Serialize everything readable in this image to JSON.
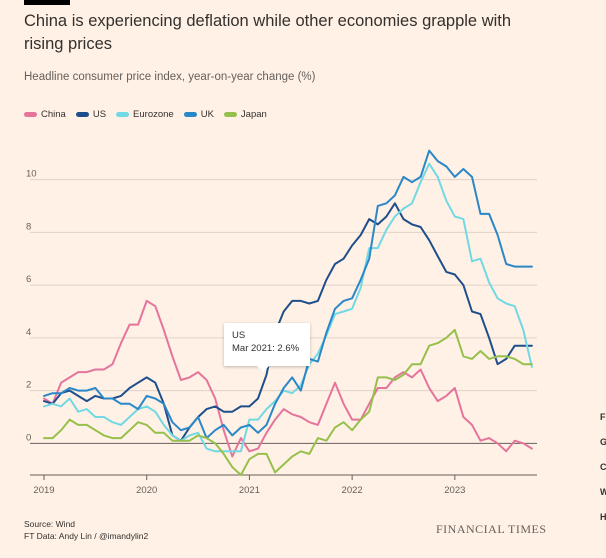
{
  "header": {
    "title": "China is experiencing deflation while other economies grapple with rising prices",
    "subtitle": "Headline consumer price index, year-on-year change (%)"
  },
  "tooltip": {
    "label": "US",
    "value": "Mar 2021: 2.6%"
  },
  "footer": {
    "source": "Source: Wind",
    "credit": "FT Data: Andy Lin / @imandylin2",
    "brand": "FINANCIAL TIMES"
  },
  "edge_letters": [
    "F",
    "G",
    "C",
    "W",
    "H"
  ],
  "chart_data": {
    "type": "line",
    "title": "China is experiencing deflation while other economies grapple with rising prices",
    "subtitle": "Headline consumer price index, year-on-year change (%)",
    "xlabel": "",
    "ylabel": "",
    "x_ticks": [
      "2019",
      "2020",
      "2021",
      "2022",
      "2023"
    ],
    "y_ticks": [
      0,
      2,
      4,
      6,
      8,
      10
    ],
    "ylim": [
      -1.2,
      11.5
    ],
    "xlim": [
      2019.0,
      2023.8
    ],
    "grid": true,
    "legend": "top-left",
    "series": [
      {
        "name": "China",
        "color": "#e5749c",
        "values": [
          1.7,
          1.5,
          2.3,
          2.5,
          2.7,
          2.7,
          2.8,
          2.8,
          3.0,
          3.8,
          4.5,
          4.5,
          5.4,
          5.2,
          4.3,
          3.3,
          2.4,
          2.5,
          2.7,
          2.4,
          1.7,
          0.5,
          -0.5,
          0.2,
          -0.3,
          -0.2,
          0.4,
          0.9,
          1.3,
          1.1,
          1.0,
          0.8,
          0.7,
          1.5,
          2.3,
          1.5,
          0.9,
          0.9,
          1.5,
          2.1,
          2.1,
          2.5,
          2.7,
          2.5,
          2.8,
          2.1,
          1.6,
          1.8,
          2.1,
          1.0,
          0.7,
          0.1,
          0.2,
          0.0,
          -0.3,
          0.1,
          0.0,
          -0.2
        ]
      },
      {
        "name": "US",
        "color": "#1f4e8c",
        "values": [
          1.6,
          1.5,
          1.9,
          2.0,
          1.8,
          1.6,
          1.8,
          1.7,
          1.7,
          1.8,
          2.1,
          2.3,
          2.5,
          2.3,
          1.5,
          0.3,
          0.1,
          0.6,
          1.0,
          1.3,
          1.4,
          1.2,
          1.2,
          1.4,
          1.4,
          1.7,
          2.6,
          4.2,
          5.0,
          5.4,
          5.4,
          5.3,
          5.4,
          6.2,
          6.8,
          7.0,
          7.5,
          7.9,
          8.5,
          8.3,
          8.6,
          9.1,
          8.5,
          8.3,
          8.2,
          7.7,
          7.1,
          6.5,
          6.4,
          6.0,
          5.0,
          4.9,
          4.0,
          3.0,
          3.2,
          3.7,
          3.7,
          3.7
        ]
      },
      {
        "name": "Eurozone",
        "color": "#72d8e4",
        "values": [
          1.4,
          1.5,
          1.4,
          1.7,
          1.2,
          1.3,
          1.0,
          1.0,
          0.8,
          0.7,
          1.0,
          1.3,
          1.4,
          1.2,
          0.7,
          0.3,
          0.1,
          0.3,
          0.4,
          -0.2,
          -0.3,
          -0.3,
          -0.3,
          -0.3,
          0.9,
          0.9,
          1.3,
          1.6,
          2.0,
          1.9,
          2.2,
          3.0,
          3.4,
          4.1,
          4.9,
          5.0,
          5.1,
          5.9,
          7.4,
          7.4,
          8.1,
          8.6,
          8.9,
          9.1,
          9.9,
          10.6,
          10.1,
          9.2,
          8.6,
          8.5,
          6.9,
          7.0,
          6.1,
          5.5,
          5.3,
          5.2,
          4.3,
          2.9
        ]
      },
      {
        "name": "UK",
        "color": "#2a87c8",
        "values": [
          1.8,
          1.9,
          1.9,
          2.1,
          2.0,
          2.0,
          2.1,
          1.7,
          1.7,
          1.5,
          1.5,
          1.3,
          1.8,
          1.7,
          1.5,
          0.8,
          0.5,
          0.6,
          1.0,
          0.2,
          0.5,
          0.7,
          0.3,
          0.6,
          0.7,
          0.4,
          0.7,
          1.5,
          2.1,
          2.5,
          2.0,
          3.2,
          3.1,
          4.2,
          5.1,
          5.4,
          5.5,
          6.2,
          7.0,
          9.0,
          9.1,
          9.4,
          10.1,
          9.9,
          10.1,
          11.1,
          10.7,
          10.5,
          10.1,
          10.4,
          10.1,
          8.7,
          8.7,
          7.9,
          6.8,
          6.7,
          6.7,
          6.7
        ]
      },
      {
        "name": "Japan",
        "color": "#96c04c",
        "values": [
          0.2,
          0.2,
          0.5,
          0.9,
          0.7,
          0.7,
          0.5,
          0.3,
          0.2,
          0.2,
          0.5,
          0.8,
          0.7,
          0.4,
          0.4,
          0.1,
          0.1,
          0.1,
          0.3,
          0.2,
          0.0,
          -0.4,
          -0.9,
          -1.2,
          -0.6,
          -0.4,
          -0.4,
          -1.1,
          -0.8,
          -0.5,
          -0.3,
          -0.4,
          0.2,
          0.1,
          0.6,
          0.8,
          0.5,
          0.9,
          1.2,
          2.5,
          2.5,
          2.4,
          2.6,
          3.0,
          3.0,
          3.7,
          3.8,
          4.0,
          4.3,
          3.3,
          3.2,
          3.5,
          3.2,
          3.3,
          3.3,
          3.2,
          3.0,
          3.0
        ]
      }
    ]
  }
}
